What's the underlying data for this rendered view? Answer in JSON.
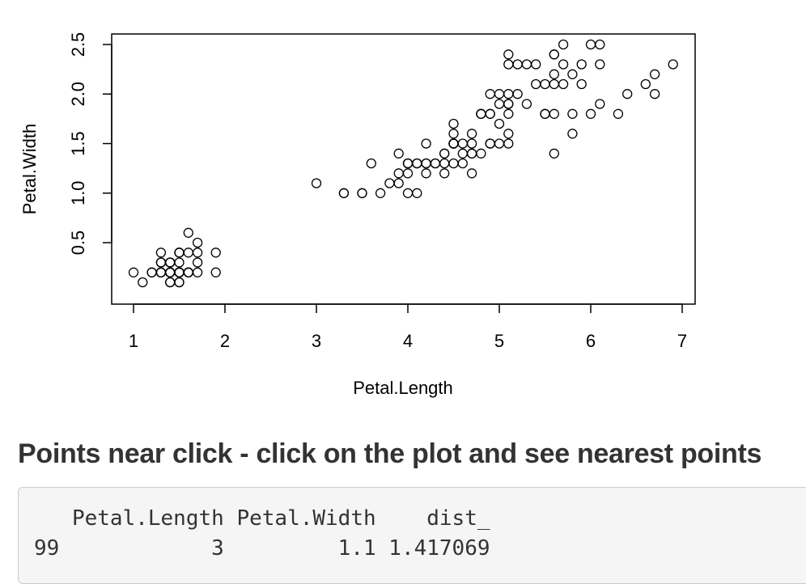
{
  "chart_data": {
    "type": "scatter",
    "xlabel": "Petal.Length",
    "ylabel": "Petal.Width",
    "xlim": [
      1,
      7
    ],
    "ylim": [
      0.1,
      2.5
    ],
    "xticks": [
      "1",
      "2",
      "3",
      "4",
      "5",
      "6",
      "7"
    ],
    "yticks": [
      "0.5",
      "1.0",
      "1.5",
      "2.0",
      "2.5"
    ],
    "grid": false,
    "points": [
      [
        1.4,
        0.2
      ],
      [
        1.4,
        0.2
      ],
      [
        1.3,
        0.2
      ],
      [
        1.5,
        0.2
      ],
      [
        1.4,
        0.2
      ],
      [
        1.7,
        0.4
      ],
      [
        1.4,
        0.3
      ],
      [
        1.5,
        0.2
      ],
      [
        1.4,
        0.2
      ],
      [
        1.5,
        0.1
      ],
      [
        1.5,
        0.2
      ],
      [
        1.6,
        0.2
      ],
      [
        1.4,
        0.1
      ],
      [
        1.1,
        0.1
      ],
      [
        1.2,
        0.2
      ],
      [
        1.5,
        0.4
      ],
      [
        1.3,
        0.4
      ],
      [
        1.4,
        0.3
      ],
      [
        1.7,
        0.3
      ],
      [
        1.5,
        0.3
      ],
      [
        1.7,
        0.2
      ],
      [
        1.5,
        0.4
      ],
      [
        1.0,
        0.2
      ],
      [
        1.7,
        0.5
      ],
      [
        1.9,
        0.2
      ],
      [
        1.6,
        0.2
      ],
      [
        1.6,
        0.4
      ],
      [
        1.5,
        0.2
      ],
      [
        1.4,
        0.2
      ],
      [
        1.6,
        0.2
      ],
      [
        1.6,
        0.2
      ],
      [
        1.5,
        0.4
      ],
      [
        1.5,
        0.1
      ],
      [
        1.4,
        0.2
      ],
      [
        1.5,
        0.2
      ],
      [
        1.2,
        0.2
      ],
      [
        1.3,
        0.2
      ],
      [
        1.4,
        0.1
      ],
      [
        1.3,
        0.2
      ],
      [
        1.5,
        0.2
      ],
      [
        1.3,
        0.3
      ],
      [
        1.3,
        0.3
      ],
      [
        1.3,
        0.2
      ],
      [
        1.6,
        0.6
      ],
      [
        1.9,
        0.4
      ],
      [
        1.4,
        0.3
      ],
      [
        1.6,
        0.2
      ],
      [
        1.4,
        0.2
      ],
      [
        1.5,
        0.2
      ],
      [
        1.4,
        0.2
      ],
      [
        4.7,
        1.4
      ],
      [
        4.5,
        1.5
      ],
      [
        4.9,
        1.5
      ],
      [
        4.0,
        1.3
      ],
      [
        4.6,
        1.5
      ],
      [
        4.5,
        1.3
      ],
      [
        4.7,
        1.6
      ],
      [
        3.3,
        1.0
      ],
      [
        4.6,
        1.3
      ],
      [
        3.9,
        1.4
      ],
      [
        3.5,
        1.0
      ],
      [
        4.2,
        1.5
      ],
      [
        4.0,
        1.0
      ],
      [
        4.7,
        1.4
      ],
      [
        3.6,
        1.3
      ],
      [
        4.4,
        1.4
      ],
      [
        4.5,
        1.5
      ],
      [
        4.1,
        1.0
      ],
      [
        4.5,
        1.5
      ],
      [
        3.9,
        1.1
      ],
      [
        4.8,
        1.8
      ],
      [
        4.0,
        1.3
      ],
      [
        4.9,
        1.5
      ],
      [
        4.7,
        1.2
      ],
      [
        4.3,
        1.3
      ],
      [
        4.4,
        1.4
      ],
      [
        4.8,
        1.4
      ],
      [
        5.0,
        1.7
      ],
      [
        4.5,
        1.5
      ],
      [
        3.5,
        1.0
      ],
      [
        3.8,
        1.1
      ],
      [
        3.7,
        1.0
      ],
      [
        3.9,
        1.2
      ],
      [
        5.1,
        1.6
      ],
      [
        4.5,
        1.5
      ],
      [
        4.5,
        1.6
      ],
      [
        4.7,
        1.5
      ],
      [
        4.4,
        1.3
      ],
      [
        4.1,
        1.3
      ],
      [
        4.0,
        1.3
      ],
      [
        4.4,
        1.2
      ],
      [
        4.6,
        1.4
      ],
      [
        4.0,
        1.2
      ],
      [
        3.3,
        1.0
      ],
      [
        4.2,
        1.3
      ],
      [
        4.2,
        1.2
      ],
      [
        4.2,
        1.3
      ],
      [
        4.3,
        1.3
      ],
      [
        3.0,
        1.1
      ],
      [
        4.1,
        1.3
      ],
      [
        6.0,
        2.5
      ],
      [
        5.1,
        1.9
      ],
      [
        5.9,
        2.1
      ],
      [
        5.6,
        1.8
      ],
      [
        5.8,
        2.2
      ],
      [
        6.6,
        2.1
      ],
      [
        4.5,
        1.7
      ],
      [
        6.3,
        1.8
      ],
      [
        5.8,
        1.8
      ],
      [
        6.1,
        2.5
      ],
      [
        5.1,
        2.0
      ],
      [
        5.3,
        1.9
      ],
      [
        5.5,
        2.1
      ],
      [
        5.0,
        2.0
      ],
      [
        5.1,
        2.4
      ],
      [
        5.3,
        2.3
      ],
      [
        5.5,
        1.8
      ],
      [
        6.7,
        2.2
      ],
      [
        6.9,
        2.3
      ],
      [
        5.0,
        1.5
      ],
      [
        5.7,
        2.3
      ],
      [
        4.9,
        2.0
      ],
      [
        6.7,
        2.0
      ],
      [
        4.9,
        1.8
      ],
      [
        5.7,
        2.1
      ],
      [
        6.0,
        1.8
      ],
      [
        4.8,
        1.8
      ],
      [
        4.9,
        1.8
      ],
      [
        5.6,
        2.1
      ],
      [
        5.8,
        1.6
      ],
      [
        6.1,
        1.9
      ],
      [
        6.4,
        2.0
      ],
      [
        5.6,
        2.2
      ],
      [
        5.1,
        1.5
      ],
      [
        5.6,
        1.4
      ],
      [
        6.1,
        2.3
      ],
      [
        5.6,
        2.4
      ],
      [
        5.5,
        1.8
      ],
      [
        4.8,
        1.8
      ],
      [
        5.4,
        2.1
      ],
      [
        5.6,
        2.4
      ],
      [
        5.1,
        2.3
      ],
      [
        5.1,
        1.9
      ],
      [
        5.9,
        2.3
      ],
      [
        5.7,
        2.5
      ],
      [
        5.2,
        2.3
      ],
      [
        5.0,
        1.9
      ],
      [
        5.2,
        2.0
      ],
      [
        5.4,
        2.3
      ],
      [
        5.1,
        1.8
      ]
    ]
  },
  "section": {
    "title": "Points near click - click on the plot and see nearest points"
  },
  "output": {
    "text": "   Petal.Length Petal.Width    dist_\n99            3         1.1 1.417069"
  }
}
